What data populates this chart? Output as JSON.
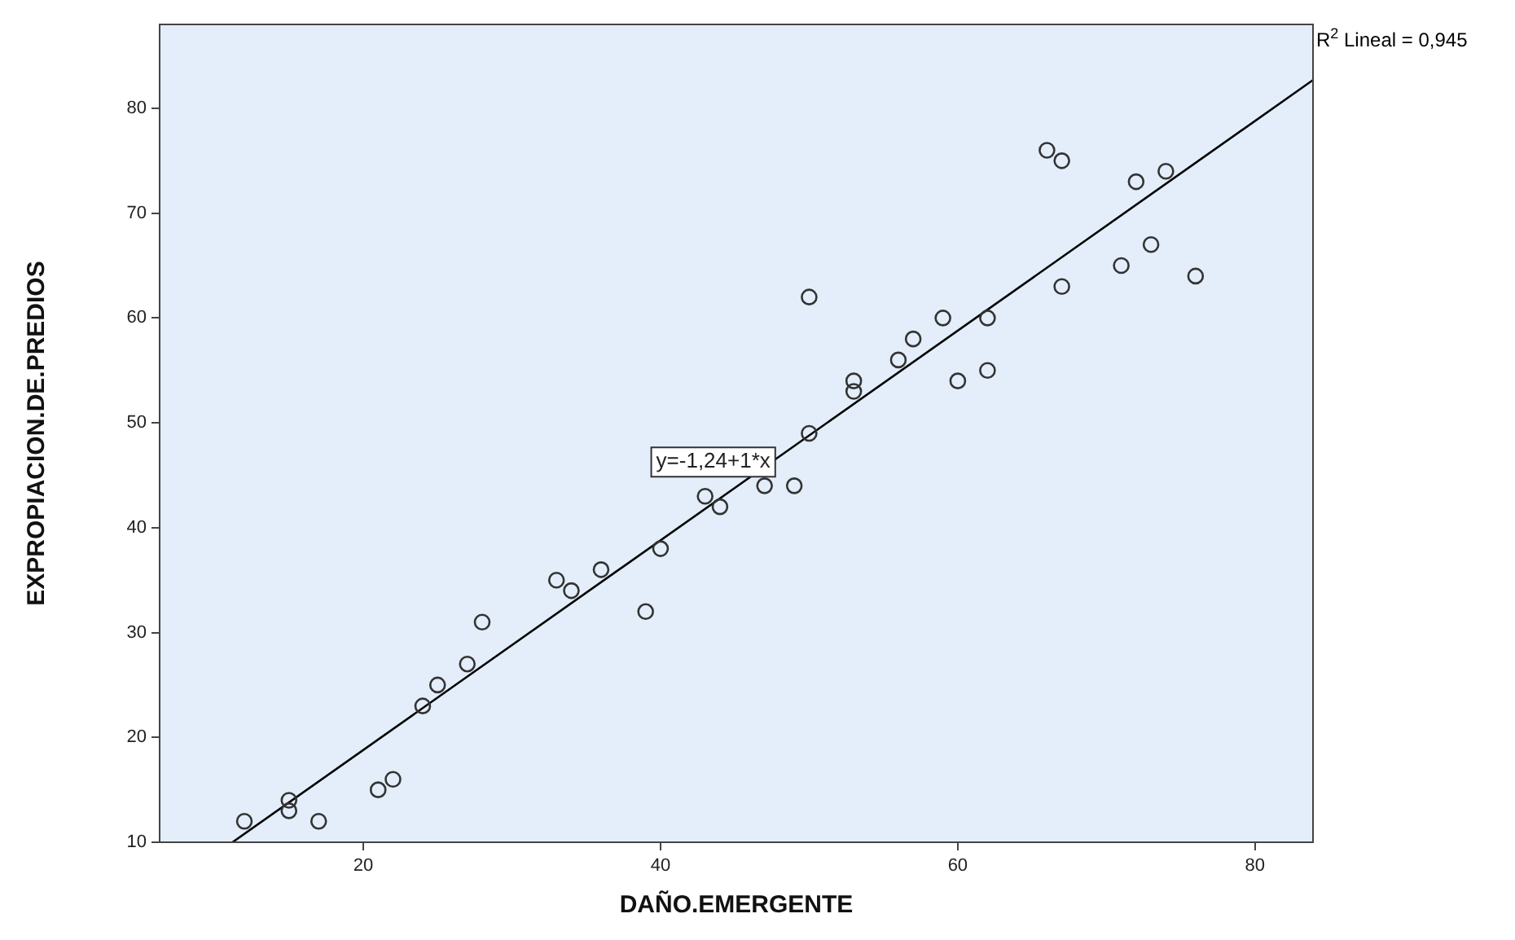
{
  "chart_data": {
    "type": "scatter",
    "xlabel": "DAÑO.EMERGENTE",
    "ylabel": "EXPROPIACION.DE.PREDIOS",
    "xlim": [
      6.3,
      83.9
    ],
    "ylim": [
      10,
      88
    ],
    "xticks": [
      20,
      40,
      60,
      80
    ],
    "yticks": [
      10,
      20,
      30,
      40,
      50,
      60,
      70,
      80
    ],
    "grid": false,
    "legend": false,
    "annotations": [
      "y=-1,24+1*x",
      "R$^{2}$ Lineal = 0,945"
    ],
    "series": [
      {
        "marker": "circle",
        "color": "#333333",
        "x": [
          12,
          15,
          15,
          17,
          21,
          22,
          24,
          25,
          27,
          28,
          33,
          34,
          36,
          39,
          40,
          43,
          44,
          47,
          49,
          50,
          50,
          53,
          53,
          56,
          57,
          59,
          60,
          62,
          62,
          66,
          67,
          67,
          71,
          72,
          73,
          74,
          76
        ],
        "values": [
          12,
          14,
          13,
          12,
          15,
          16,
          23,
          25,
          27,
          31,
          35,
          34,
          36,
          32,
          38,
          43,
          42,
          44,
          44,
          49,
          62,
          54,
          53,
          56,
          58,
          60,
          54,
          60,
          55,
          76,
          75,
          63,
          65,
          73,
          67,
          74,
          64
        ]
      },
      {
        "type": "line",
        "color": "#000000",
        "x": [
          11.2,
          83.9
        ],
        "values": [
          10,
          82.7
        ]
      }
    ]
  }
}
